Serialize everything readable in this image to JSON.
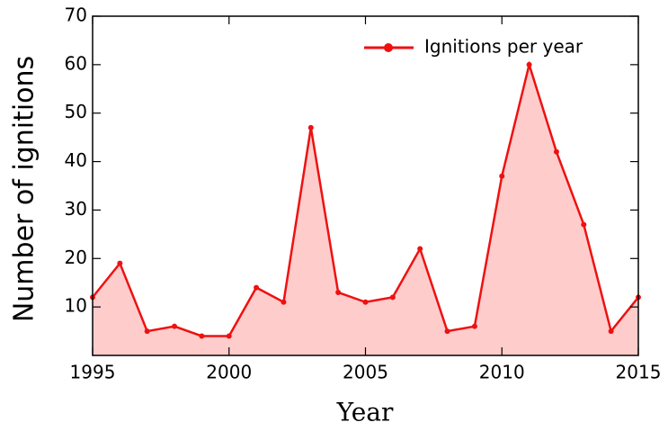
{
  "chart_data": {
    "type": "line",
    "x": [
      1995,
      1996,
      1997,
      1998,
      1999,
      2000,
      2001,
      2002,
      2003,
      2004,
      2005,
      2006,
      2007,
      2008,
      2009,
      2010,
      2011,
      2012,
      2013,
      2014,
      2015
    ],
    "series": [
      {
        "name": "Ignitions per year",
        "color": "#ee1111",
        "fill": "#ffcccc",
        "values": [
          12,
          19,
          5,
          6,
          4,
          4,
          14,
          11,
          47,
          13,
          11,
          12,
          22,
          5,
          6,
          37,
          60,
          42,
          27,
          5,
          12
        ]
      }
    ],
    "xlabel": "Year",
    "ylabel": "Number of ignitions",
    "xlim": [
      1995,
      2015
    ],
    "xticks": [
      1995,
      2000,
      2005,
      2010,
      2015
    ],
    "ylim": [
      0,
      70
    ],
    "yticks": [
      10,
      20,
      30,
      40,
      50,
      60,
      70
    ],
    "legend": "upper right",
    "grid": false
  }
}
